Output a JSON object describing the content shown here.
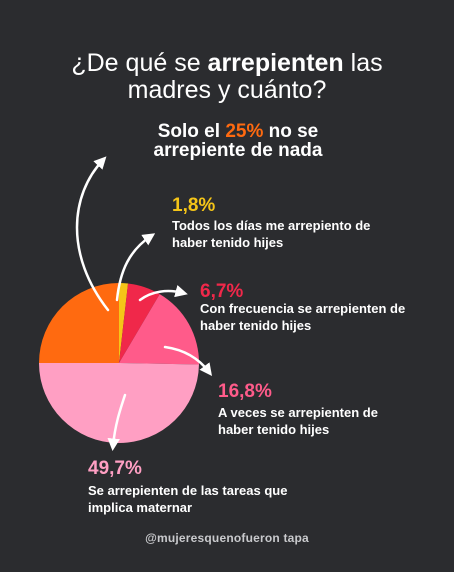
{
  "title": {
    "line1_pre": "¿De qué se ",
    "line1_bold": "arrepienten",
    "line1_post": " las",
    "line2": "madres y cuánto?"
  },
  "lead": {
    "pre": "Solo el ",
    "highlight": "25%",
    "post": " no se arrepiente de nada"
  },
  "labels": [
    {
      "value": "1,8%",
      "text": "Todos los días me arrepiento de haber tenido hijes",
      "color": "#f5c518"
    },
    {
      "value": "6,7%",
      "text": "Con frecuencia se arrepienten de haber tenido hijes",
      "color": "#f0284a"
    },
    {
      "value": "16,8%",
      "text": "A veces se arrepienten de haber tenido hijes",
      "color": "#ff5b8a"
    },
    {
      "value": "49,7%",
      "text": "Se arrepienten de las tareas que implica maternar",
      "color": "#ff9fc3"
    }
  ],
  "handle": "@mujeresquenofueron tapa",
  "colors": {
    "background": "#2b2c2f",
    "accent_orange": "#ff6a10",
    "yellow": "#f5c518",
    "red": "#f0284a",
    "pink": "#ff5b8a",
    "light_pink": "#ff9fc3"
  },
  "chart_data": {
    "type": "pie",
    "title": "¿De qué se arrepienten las madres y cuánto?",
    "slices": [
      {
        "label": "No se arrepiente de nada",
        "value": 25.0,
        "color": "#ff6a10"
      },
      {
        "label": "Todos los días me arrepiento de haber tenido hijes",
        "value": 1.8,
        "color": "#f5c518"
      },
      {
        "label": "Con frecuencia se arrepienten de haber tenido hijes",
        "value": 6.7,
        "color": "#f0284a"
      },
      {
        "label": "A veces se arrepienten de haber tenido hijes",
        "value": 16.8,
        "color": "#ff5b8a"
      },
      {
        "label": "Se arrepienten de las tareas que implica maternar",
        "value": 49.7,
        "color": "#ff9fc3"
      }
    ]
  }
}
